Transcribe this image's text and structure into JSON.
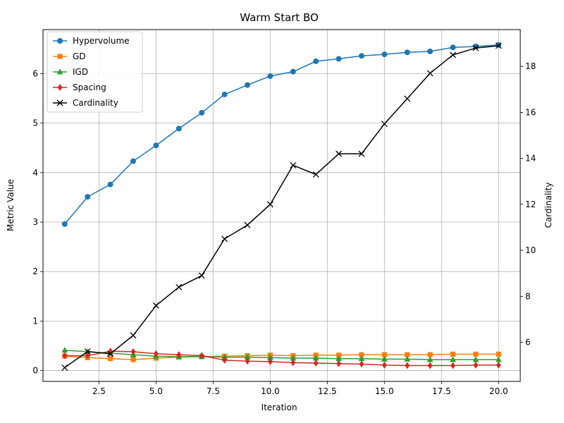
{
  "chart_data": {
    "type": "line",
    "title": "Warm Start BO",
    "xlabel": "Iteration",
    "ylabel": "Metric Value",
    "y2label": "Cardinality",
    "xlim": [
      0.05,
      20.95
    ],
    "ylim": [
      -0.22,
      6.89
    ],
    "y2lim": [
      4.3,
      19.6
    ],
    "xticks": [
      2.5,
      5.0,
      7.5,
      10.0,
      12.5,
      15.0,
      17.5,
      20.0
    ],
    "xtick_labels": [
      "2.5",
      "5.0",
      "7.5",
      "10.0",
      "12.5",
      "15.0",
      "17.5",
      "20.0"
    ],
    "yticks": [
      0,
      1,
      2,
      3,
      4,
      5,
      6
    ],
    "ytick_labels": [
      "0",
      "1",
      "2",
      "3",
      "4",
      "5",
      "6"
    ],
    "y2ticks": [
      6,
      8,
      10,
      12,
      14,
      16,
      18
    ],
    "y2tick_labels": [
      "6",
      "8",
      "10",
      "12",
      "14",
      "16",
      "18"
    ],
    "grid": true,
    "legend_position": "top-left",
    "x": [
      1,
      2,
      3,
      4,
      5,
      6,
      7,
      8,
      9,
      10,
      11,
      12,
      13,
      14,
      15,
      16,
      17,
      18,
      19,
      20
    ],
    "series": [
      {
        "name": "Hypervolume",
        "axis": "left",
        "color": "#1f77b4",
        "marker": "circle",
        "values": [
          2.96,
          3.51,
          3.76,
          4.23,
          4.55,
          4.89,
          5.21,
          5.58,
          5.77,
          5.95,
          6.04,
          6.25,
          6.3,
          6.36,
          6.39,
          6.43,
          6.45,
          6.53,
          6.55,
          6.58
        ]
      },
      {
        "name": "GD",
        "axis": "left",
        "color": "#ff7f0e",
        "marker": "square",
        "values": [
          0.29,
          0.26,
          0.24,
          0.22,
          0.25,
          0.27,
          0.28,
          0.29,
          0.3,
          0.31,
          0.3,
          0.31,
          0.31,
          0.32,
          0.32,
          0.32,
          0.32,
          0.33,
          0.33,
          0.33
        ]
      },
      {
        "name": "IGD",
        "axis": "left",
        "color": "#2ca02c",
        "marker": "triangle",
        "values": [
          0.41,
          0.38,
          0.35,
          0.32,
          0.29,
          0.28,
          0.28,
          0.27,
          0.27,
          0.26,
          0.25,
          0.25,
          0.24,
          0.24,
          0.23,
          0.23,
          0.22,
          0.22,
          0.22,
          0.22
        ]
      },
      {
        "name": "Spacing",
        "axis": "left",
        "color": "#d62728",
        "marker": "diamond",
        "values": [
          0.3,
          0.3,
          0.39,
          0.38,
          0.34,
          0.32,
          0.3,
          0.21,
          0.19,
          0.18,
          0.16,
          0.15,
          0.14,
          0.13,
          0.11,
          0.1,
          0.1,
          0.1,
          0.11,
          0.11
        ]
      },
      {
        "name": "Cardinality",
        "axis": "right",
        "color": "#000000",
        "marker": "x",
        "values": [
          4.9,
          5.6,
          5.5,
          6.3,
          7.6,
          8.4,
          8.9,
          10.5,
          11.1,
          12.0,
          13.7,
          13.3,
          14.2,
          14.2,
          15.5,
          16.6,
          17.7,
          18.5,
          18.8,
          18.9
        ]
      }
    ]
  }
}
